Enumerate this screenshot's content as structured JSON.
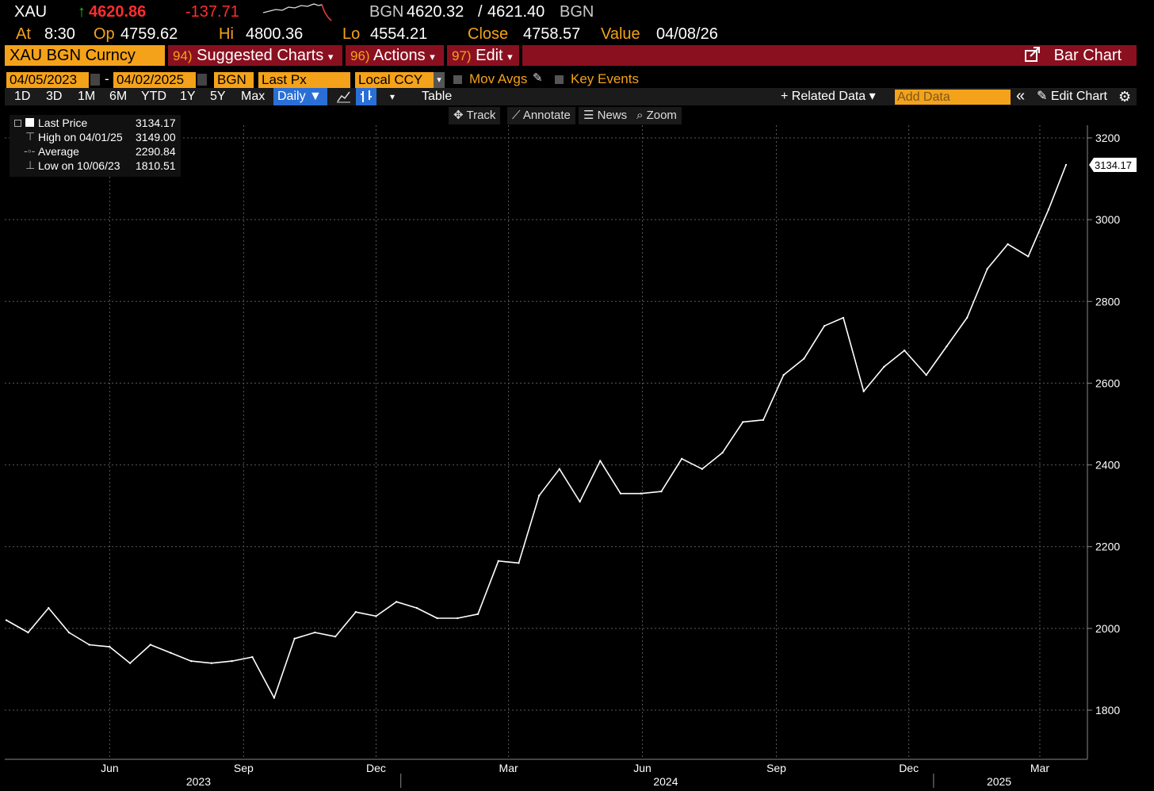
{
  "header": {
    "ticker": "XAU",
    "arrow": "↑",
    "last": "4620.86",
    "change": "-137.71",
    "bid_ask_src": "BGN",
    "bid": "4620.32",
    "ask": "4621.40",
    "bid_ask_src2": "BGN",
    "at_label": "At",
    "at_value": "8:30",
    "op_label": "Op",
    "op_value": "4759.62",
    "hi_label": "Hi",
    "hi_value": "4800.36",
    "lo_label": "Lo",
    "lo_value": "4554.21",
    "close_label": "Close",
    "close_value": "4758.57",
    "value_label": "Value",
    "value_date": "04/08/26"
  },
  "menu": {
    "security": "XAU BGN Curncy",
    "suggested_num": "94)",
    "suggested_label": "Suggested Charts",
    "actions_num": "96)",
    "actions_label": "Actions",
    "edit_num": "97)",
    "edit_label": "Edit",
    "chart_type": "Bar Chart",
    "dropdown_glyph": "▾"
  },
  "controls": {
    "start_date": "04/05/2023",
    "dash": "-",
    "end_date": "04/02/2025",
    "source": "BGN",
    "field": "Last Px",
    "currency": "Local CCY",
    "mov_avgs": "Mov Avgs",
    "key_events": "Key Events"
  },
  "toolbar": {
    "periods": [
      "1D",
      "3D",
      "1M",
      "6M",
      "YTD",
      "1Y",
      "5Y",
      "Max"
    ],
    "frequency": "Daily ▼",
    "table": "Table",
    "related_data": "+ Related Data ▾",
    "add_data_placeholder": "Add Data",
    "collapse": "«",
    "edit_chart": "✎ Edit Chart",
    "gear": "⚙"
  },
  "subtools": {
    "track": "✥ Track",
    "annotate": "⟋ Annotate",
    "news": "☰ News",
    "zoom": "⌕ Zoom"
  },
  "legend": {
    "last_label": "Last Price",
    "last_value": "3134.17",
    "high_label": "High on 04/01/25",
    "high_value": "3149.00",
    "avg_label": "Average",
    "avg_value": "2290.84",
    "low_label": "Low on 10/06/23",
    "low_value": "1810.51"
  },
  "colors": {
    "amber": "#f4a21a",
    "menu_red": "#8a1020",
    "change_red": "#ff2d2d",
    "selected_blue": "#2a6fd6",
    "price_line": "#ffffff"
  },
  "chart_data": {
    "type": "line",
    "title": "",
    "xlabel": "",
    "ylabel": "",
    "y_axis_side": "right",
    "ylim": [
      1700,
      3300
    ],
    "y_ticks": [
      1800,
      2000,
      2200,
      2400,
      2600,
      2800,
      3000,
      3200
    ],
    "x_month_ticks": [
      "Jun",
      "Sep",
      "Dec",
      "Mar",
      "Jun",
      "Sep",
      "Dec",
      "Mar"
    ],
    "x_year_labels": [
      "2023",
      "2024",
      "2025"
    ],
    "grid": true,
    "last_value_label": "3134.17",
    "series": [
      {
        "name": "Last Price",
        "x": [
          "2023-04-05",
          "2023-04-20",
          "2023-05-04",
          "2023-05-18",
          "2023-06-01",
          "2023-06-15",
          "2023-06-29",
          "2023-07-13",
          "2023-07-27",
          "2023-08-10",
          "2023-08-24",
          "2023-09-07",
          "2023-09-21",
          "2023-10-06",
          "2023-10-20",
          "2023-11-03",
          "2023-11-17",
          "2023-12-01",
          "2023-12-15",
          "2023-12-29",
          "2024-01-12",
          "2024-01-26",
          "2024-02-09",
          "2024-02-23",
          "2024-03-08",
          "2024-03-22",
          "2024-04-05",
          "2024-04-19",
          "2024-05-03",
          "2024-05-17",
          "2024-05-31",
          "2024-06-14",
          "2024-06-28",
          "2024-07-12",
          "2024-07-26",
          "2024-08-09",
          "2024-08-23",
          "2024-09-06",
          "2024-09-20",
          "2024-10-04",
          "2024-10-18",
          "2024-10-31",
          "2024-11-14",
          "2024-11-28",
          "2024-12-12",
          "2024-12-27",
          "2025-01-10",
          "2025-01-24",
          "2025-02-07",
          "2025-02-21",
          "2025-03-07",
          "2025-03-21",
          "2025-04-02"
        ],
        "y": [
          2020,
          1990,
          2050,
          1990,
          1960,
          1955,
          1915,
          1960,
          1940,
          1920,
          1915,
          1920,
          1930,
          1830,
          1975,
          1990,
          1980,
          2040,
          2030,
          2065,
          2050,
          2025,
          2025,
          2035,
          2165,
          2160,
          2325,
          2390,
          2310,
          2410,
          2330,
          2330,
          2335,
          2415,
          2390,
          2430,
          2505,
          2510,
          2620,
          2660,
          2740,
          2760,
          2580,
          2640,
          2680,
          2620,
          2690,
          2760,
          2880,
          2940,
          2910,
          3025,
          3134
        ]
      }
    ]
  }
}
